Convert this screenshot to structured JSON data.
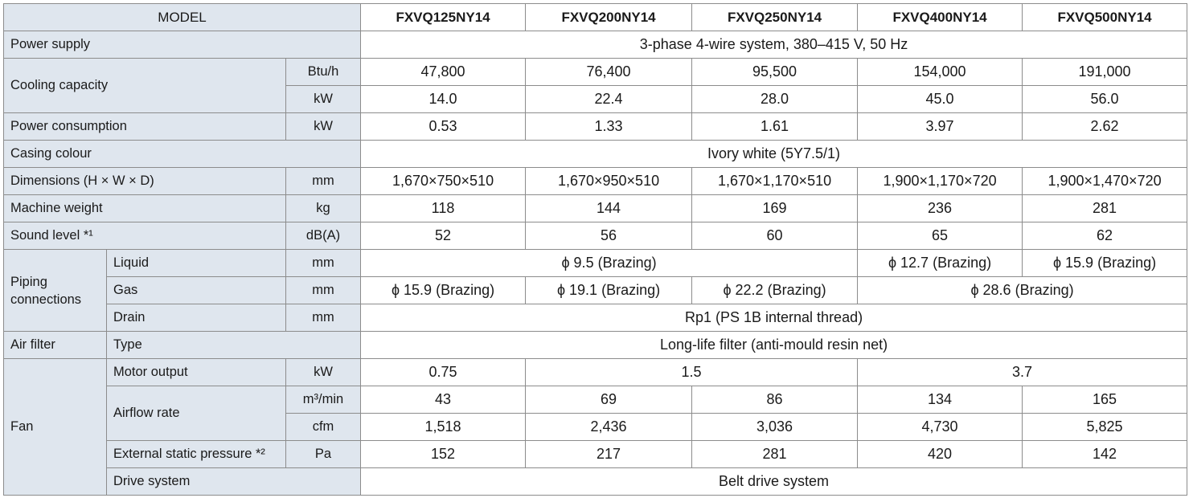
{
  "table": {
    "header": [
      "MODEL",
      "FXVQ125NY14",
      "FXVQ200NY14",
      "FXVQ250NY14",
      "FXVQ400NY14",
      "FXVQ500NY14"
    ],
    "rows": [
      {
        "label": "Power supply",
        "values": [
          "3-phase 4-wire system, 380–415 V, 50 Hz"
        ]
      },
      {
        "label": "Cooling capacity",
        "unit": "Btu/h",
        "values": [
          "47,800",
          "76,400",
          "95,500",
          "154,000",
          "191,000"
        ]
      },
      {
        "unit": "kW",
        "values": [
          "14.0",
          "22.4",
          "28.0",
          "45.0",
          "56.0"
        ]
      },
      {
        "label": "Power consumption",
        "unit": "kW",
        "values": [
          "0.53",
          "1.33",
          "1.61",
          "3.97",
          "2.62"
        ]
      },
      {
        "label": "Casing colour",
        "values": [
          "Ivory white (5Y7.5/1)"
        ]
      },
      {
        "label": "Dimensions (H × W × D)",
        "unit": "mm",
        "values": [
          "1,670×750×510",
          "1,670×950×510",
          "1,670×1,170×510",
          "1,900×1,170×720",
          "1,900×1,470×720"
        ]
      },
      {
        "label": "Machine weight",
        "unit": "kg",
        "values": [
          "118",
          "144",
          "169",
          "236",
          "281"
        ]
      },
      {
        "label": "Sound level *¹",
        "unit": "dB(A)",
        "values": [
          "52",
          "56",
          "60",
          "65",
          "62"
        ]
      },
      {
        "group": "Piping connections",
        "label": "Liquid",
        "unit": "mm",
        "values": [
          "ϕ 9.5 (Brazing)",
          "ϕ 12.7 (Brazing)",
          "ϕ 15.9 (Brazing)"
        ]
      },
      {
        "label": "Gas",
        "unit": "mm",
        "values": [
          "ϕ 15.9 (Brazing)",
          "ϕ 19.1 (Brazing)",
          "ϕ 22.2 (Brazing)",
          "ϕ 28.6 (Brazing)"
        ]
      },
      {
        "label": "Drain",
        "unit": "mm",
        "values": [
          "Rp1 (PS 1B internal thread)"
        ]
      },
      {
        "group": "Air filter",
        "label": "Type",
        "values": [
          "Long-life filter (anti-mould resin net)"
        ]
      },
      {
        "group": "Fan",
        "label": "Motor output",
        "unit": "kW",
        "values": [
          "0.75",
          "1.5",
          "3.7"
        ]
      },
      {
        "label": "Airflow rate",
        "unit": "m³/min",
        "values": [
          "43",
          "69",
          "86",
          "134",
          "165"
        ]
      },
      {
        "unit": "cfm",
        "values": [
          "1,518",
          "2,436",
          "3,036",
          "4,730",
          "5,825"
        ]
      },
      {
        "label": "External static pressure *²",
        "unit": "Pa",
        "values": [
          "152",
          "217",
          "281",
          "420",
          "142"
        ]
      },
      {
        "label": "Drive system",
        "values": [
          "Belt drive system"
        ]
      }
    ]
  }
}
